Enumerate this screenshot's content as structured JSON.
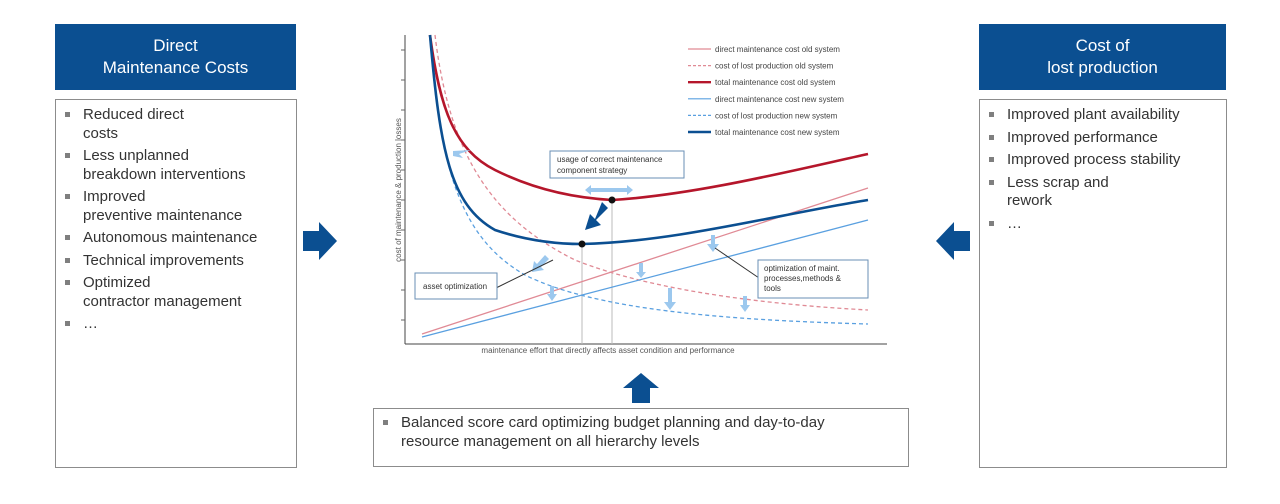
{
  "left_panel": {
    "title": "Direct\nMaintenance Costs",
    "items": [
      "Reduced direct\ncosts",
      "Less unplanned\nbreakdown interventions",
      "Improved\npreventive maintenance",
      "Autonomous maintenance",
      "Technical improvements",
      "Optimized\ncontractor management",
      "…"
    ]
  },
  "right_panel": {
    "title": "Cost of\nlost production",
    "items": [
      "Improved plant availability",
      "Improved performance",
      "Improved process stability",
      "Less scrap and\nrework",
      "…"
    ]
  },
  "bottom_box": {
    "items": [
      "Balanced score card optimizing budget planning and day-to-day\nresource management on all hierarchy levels"
    ]
  },
  "colors": {
    "header_blue": "#0b4f91",
    "old_light": "#e08a95",
    "old_dark": "#b5162b",
    "new_light": "#5aa0e0",
    "new_dark": "#0b4f91",
    "arrow_light": "#9cc8ee"
  },
  "chart": {
    "ylabel": "cost of maintenance & production losses",
    "xlabel": "maintenance effort that directly affects asset condition and performance",
    "legend": [
      {
        "label": "direct maintenance cost old system",
        "color": "#e08a95",
        "style": "solid-thin"
      },
      {
        "label": "cost of lost production old system",
        "color": "#e08a95",
        "style": "dashed"
      },
      {
        "label": "total maintenance cost old system",
        "color": "#b5162b",
        "style": "solid-thick"
      },
      {
        "label": "direct maintenance cost new system",
        "color": "#5aa0e0",
        "style": "solid-thin"
      },
      {
        "label": "cost of lost production new system",
        "color": "#5aa0e0",
        "style": "dashed"
      },
      {
        "label": "total maintenance cost new system",
        "color": "#0b4f91",
        "style": "solid-thick"
      }
    ],
    "callouts": {
      "strategy": "usage of correct maintenance\ncomponent strategy",
      "asset": "asset optimization",
      "optimization": "optimization of maint.\nprocesses,methods &\ntools"
    }
  }
}
